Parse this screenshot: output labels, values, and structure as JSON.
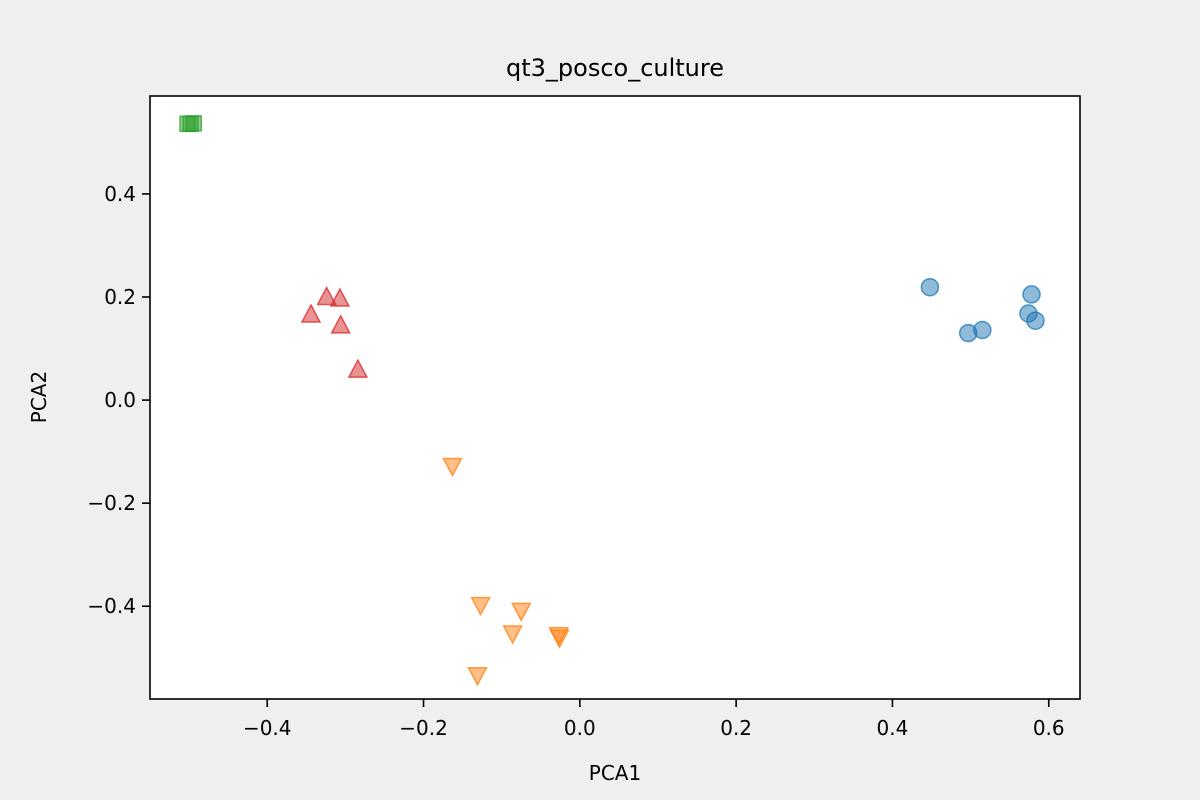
{
  "chart_data": {
    "type": "scatter",
    "title": "qt3_posco_culture",
    "xlabel": "PCA1",
    "ylabel": "PCA2",
    "xlim": [
      -0.55,
      0.64
    ],
    "ylim": [
      -0.58,
      0.59
    ],
    "grid": false,
    "legend": "none",
    "xticks": [
      {
        "value": -0.4,
        "label": "−0.4"
      },
      {
        "value": -0.2,
        "label": "−0.2"
      },
      {
        "value": 0.0,
        "label": "0.0"
      },
      {
        "value": 0.2,
        "label": "0.2"
      },
      {
        "value": 0.4,
        "label": "0.4"
      },
      {
        "value": 0.6,
        "label": "0.6"
      }
    ],
    "yticks": [
      {
        "value": -0.4,
        "label": "−0.4"
      },
      {
        "value": -0.2,
        "label": "−0.2"
      },
      {
        "value": 0.0,
        "label": "0.0"
      },
      {
        "value": 0.2,
        "label": "0.2"
      },
      {
        "value": 0.4,
        "label": "0.4"
      }
    ],
    "series": [
      {
        "marker": "circle",
        "color": "#1f77b4",
        "points": [
          {
            "x": 0.448,
            "y": 0.219
          },
          {
            "x": 0.497,
            "y": 0.13
          },
          {
            "x": 0.515,
            "y": 0.136
          },
          {
            "x": 0.574,
            "y": 0.168
          },
          {
            "x": 0.578,
            "y": 0.205
          },
          {
            "x": 0.583,
            "y": 0.154
          }
        ]
      },
      {
        "marker": "triangle-down",
        "color": "#ff7f0e",
        "points": [
          {
            "x": -0.163,
            "y": -0.127
          },
          {
            "x": -0.127,
            "y": -0.397
          },
          {
            "x": -0.075,
            "y": -0.408
          },
          {
            "x": -0.086,
            "y": -0.452
          },
          {
            "x": -0.027,
            "y": -0.455
          },
          {
            "x": -0.026,
            "y": -0.46
          },
          {
            "x": -0.131,
            "y": -0.533
          }
        ]
      },
      {
        "marker": "square",
        "color": "#2ca02c",
        "points": [
          {
            "x": -0.502,
            "y": 0.536
          },
          {
            "x": -0.498,
            "y": 0.536
          },
          {
            "x": -0.494,
            "y": 0.537
          }
        ]
      },
      {
        "marker": "triangle-up",
        "color": "#d62728",
        "points": [
          {
            "x": -0.344,
            "y": 0.165
          },
          {
            "x": -0.324,
            "y": 0.199
          },
          {
            "x": -0.307,
            "y": 0.196
          },
          {
            "x": -0.306,
            "y": 0.144
          },
          {
            "x": -0.284,
            "y": 0.058
          }
        ]
      }
    ]
  }
}
